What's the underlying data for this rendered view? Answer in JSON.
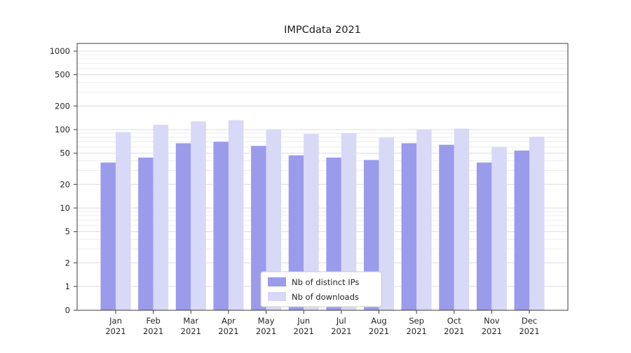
{
  "chart_data": {
    "type": "bar",
    "title": "IMPCdata 2021",
    "categories": [
      "Jan 2021",
      "Feb 2021",
      "Mar 2021",
      "Apr 2021",
      "May 2021",
      "Jun 2021",
      "Jul 2021",
      "Aug 2021",
      "Sep 2021",
      "Oct 2021",
      "Nov 2021",
      "Dec 2021"
    ],
    "series": [
      {
        "name": "Nb of distinct IPs",
        "color": "#9b9bec",
        "values": [
          38,
          44,
          67,
          70,
          62,
          47,
          44,
          41,
          67,
          64,
          38,
          54
        ]
      },
      {
        "name": "Nb of downloads",
        "color": "#d8d8f7",
        "values": [
          93,
          115,
          127,
          132,
          100,
          88,
          90,
          79,
          100,
          103,
          60,
          81
        ]
      }
    ],
    "yscale": "symlog",
    "y_ticks": [
      0,
      1,
      2,
      5,
      10,
      20,
      50,
      100,
      200,
      500,
      1000
    ],
    "ylim": [
      0,
      1000
    ],
    "grid": true,
    "legend_position": "lower center"
  }
}
